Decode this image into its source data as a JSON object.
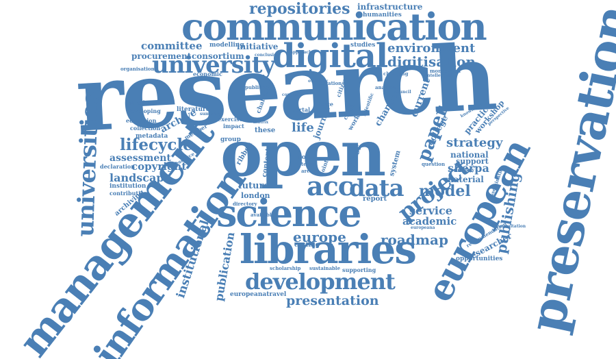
{
  "colors": {
    "word": "#4a7fb5",
    "background": "#ffffff"
  },
  "words": {
    "research": "research",
    "open": "open",
    "preservation": "preservation",
    "management": "management",
    "information": "information",
    "communication": "communication",
    "libraries": "libraries",
    "science": "science",
    "european": "european",
    "digital": "digital",
    "university": "university",
    "universities": "universities",
    "development": "development",
    "acc": "acc",
    "data": "data",
    "project": "project",
    "repositories": "repositories",
    "lifecycle": "lifecycle",
    "digitisation": "digitisation",
    "environment": "environment",
    "model": "model",
    "roadmap": "roadmap",
    "europe": "europe",
    "presentation": "presentation",
    "publishing": "publishing",
    "institutional": "institutional",
    "publication": "publication",
    "strategy": "strategy",
    "sherpa": "sherpa",
    "landscape": "landscape",
    "copyright": "copyright",
    "assessment": "assessment",
    "committee": "committee",
    "procurement": "procurement",
    "consortium": "consortium",
    "initiative": "initiative",
    "infrastructure": "infrastructure",
    "humanities": "humanities",
    "paper": "paper",
    "service": "service",
    "academic": "academic",
    "archive": "archive",
    "future": "future",
    "london": "london",
    "material": "material",
    "national": "national",
    "support": "support",
    "researcher": "researcher",
    "opportunities": "opportunities",
    "europeanatravel": "europeanatravel",
    "current": "current",
    "life": "life",
    "journal": "journal",
    "change": "change",
    "practice": "practice",
    "workshop": "workshop",
    "college": "college",
    "report": "report",
    "costing": "costing",
    "supporting": "supporting",
    "content": "content",
    "archiving": "archiving",
    "metadata": "metadata",
    "collection": "collection",
    "education": "education",
    "developing": "developing",
    "introduction": "introduction",
    "literature": "literature",
    "economic": "economic",
    "organisation": "organisation",
    "modelling": "modelling",
    "studies": "studies",
    "institution": "institution",
    "contribution": "contribution",
    "declaration": "declaration",
    "recommendation": "recommendation",
    "group": "group",
    "these": "these",
    "liber": "liber",
    "system": "system",
    "role": "role",
    "portal": "portal",
    "citizen": "citizen",
    "impact": "impact",
    "exercise": "exercise",
    "scholarship": "scholarship",
    "sustainable": "sustainable",
    "directory": "directory",
    "available": "available",
    "question": "question",
    "technology": "technology",
    "dissemination": "dissemination",
    "consultation": "consultation",
    "conclusion": "conclusion",
    "monograph": "monograph",
    "publisher": "publisher",
    "challenge": "challenge",
    "changing": "changing",
    "analysis": "analysis",
    "council": "council",
    "intellectual": "intellectual",
    "knowledge": "knowledge",
    "perspective": "perspective",
    "force": "force",
    "curation": "curation",
    "overview": "overview",
    "context": "context",
    "summary": "summary",
    "approach": "approach",
    "cloud": "cloud",
    "work": "work",
    "member": "member",
    "resource": "resource",
    "matrix": "matrix",
    "term": "term",
    "area": "area",
    "joint": "joint",
    "scientific": "scientific",
    "ribbon": "ribbon",
    "europeana": "europeana"
  }
}
